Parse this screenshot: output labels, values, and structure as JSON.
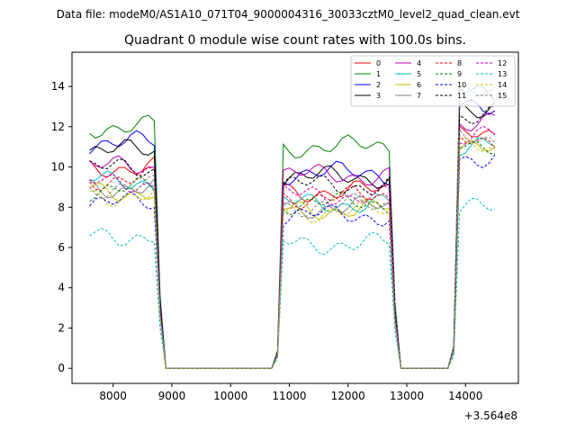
{
  "suptitle": "Data file: modeM0/AS1A10_071T04_9000004316_30033cztM0_level2_quad_clean.evt",
  "chart_data": {
    "type": "line",
    "title": "Quadrant 0 module wise count rates with 100.0s bins.",
    "xlabel": "",
    "ylabel": "",
    "x_offset_label": "+3.564e8",
    "xlim": [
      7300,
      14900
    ],
    "ylim": [
      -0.75,
      15.7
    ],
    "x_ticks": [
      8000,
      9000,
      10000,
      11000,
      12000,
      13000,
      14000
    ],
    "x_tick_labels": [
      "8000",
      "9000",
      "10000",
      "11000",
      "12000",
      "13000",
      "14000"
    ],
    "y_ticks": [
      0,
      2,
      4,
      6,
      8,
      10,
      12,
      14
    ],
    "y_tick_labels": [
      "0",
      "2",
      "4",
      "6",
      "8",
      "10",
      "12",
      "14"
    ],
    "legend_position": "top-right",
    "segments": [
      {
        "start": 7600,
        "end": 8700
      },
      {
        "start": 10900,
        "end": 12700
      },
      {
        "start": 13900,
        "end": 14500
      }
    ],
    "series": [
      {
        "name": "0",
        "color": "#ff0000",
        "style": "solid",
        "levels": [
          10.0,
          8.8,
          11.5
        ]
      },
      {
        "name": "1",
        "color": "#008000",
        "style": "solid",
        "levels": [
          12.0,
          11.0,
          13.8
        ]
      },
      {
        "name": "2",
        "color": "#0000ff",
        "style": "solid",
        "levels": [
          11.2,
          9.7,
          13.2
        ]
      },
      {
        "name": "3",
        "color": "#000000",
        "style": "solid",
        "levels": [
          10.8,
          9.5,
          13.0
        ]
      },
      {
        "name": "4",
        "color": "#bf00bf",
        "style": "solid",
        "levels": [
          10.0,
          9.6,
          12.3
        ]
      },
      {
        "name": "5",
        "color": "#00bfbf",
        "style": "solid",
        "levels": [
          9.3,
          8.2,
          11.0
        ]
      },
      {
        "name": "6",
        "color": "#bfbf00",
        "style": "solid",
        "levels": [
          8.8,
          7.9,
          10.8
        ]
      },
      {
        "name": "7",
        "color": "#808080",
        "style": "solid",
        "levels": [
          9.0,
          8.0,
          13.6
        ]
      },
      {
        "name": "8",
        "color": "#ff0000",
        "style": "dashed",
        "levels": [
          9.4,
          8.5,
          11.3
        ]
      },
      {
        "name": "9",
        "color": "#008000",
        "style": "dashed",
        "levels": [
          8.9,
          8.2,
          11.2
        ]
      },
      {
        "name": "10",
        "color": "#0000ff",
        "style": "dashed",
        "levels": [
          8.2,
          7.6,
          10.5
        ]
      },
      {
        "name": "11",
        "color": "#000000",
        "style": "dashed",
        "levels": [
          9.9,
          9.1,
          12.6
        ]
      },
      {
        "name": "12",
        "color": "#bf00bf",
        "style": "dashed",
        "levels": [
          9.2,
          8.6,
          11.5
        ]
      },
      {
        "name": "13",
        "color": "#00bfbf",
        "style": "dashed",
        "levels": [
          6.6,
          6.2,
          7.9
        ]
      },
      {
        "name": "14",
        "color": "#bfbf00",
        "style": "dashed",
        "levels": [
          8.6,
          7.8,
          10.9
        ]
      },
      {
        "name": "15",
        "color": "#808080",
        "style": "dashed",
        "levels": [
          9.0,
          8.1,
          11.4
        ]
      }
    ]
  }
}
